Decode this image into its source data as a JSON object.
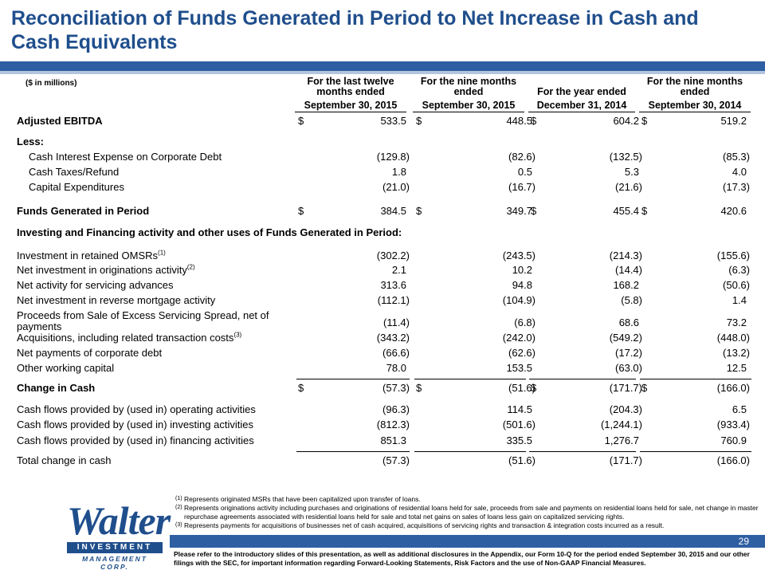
{
  "title": "Reconciliation of Funds Generated in Period to Net Increase in Cash and Cash Equivalents",
  "units": "($ in millions)",
  "columns": [
    {
      "heading": "For the last twelve months ended",
      "date": "September 30, 2015"
    },
    {
      "heading": "For the nine months ended",
      "date": "September 30, 2015"
    },
    {
      "heading": "For the year ended",
      "date": "December 31, 2014"
    },
    {
      "heading": "For the nine months ended",
      "date": "September 30, 2014"
    }
  ],
  "rows": {
    "adjusted_ebitda": {
      "label": "Adjusted EBITDA",
      "values": [
        "533.5",
        "448.5",
        "604.2",
        "519.2"
      ]
    },
    "less": {
      "label": "Less:"
    },
    "cash_interest": {
      "label": "Cash Interest Expense on Corporate Debt",
      "values": [
        "(129.8)",
        "(82.6)",
        "(132.5)",
        "(85.3)"
      ]
    },
    "cash_taxes": {
      "label": "Cash Taxes/Refund",
      "values": [
        "1.8",
        "0.5",
        "5.3",
        "4.0"
      ]
    },
    "capex": {
      "label": "Capital Expenditures",
      "values": [
        "(21.0)",
        "(16.7)",
        "(21.6)",
        "(17.3)"
      ]
    },
    "funds_generated": {
      "label": "Funds Generated in Period",
      "values": [
        "384.5",
        "349.7",
        "455.4",
        "420.6"
      ]
    },
    "investing_header": {
      "label": "Investing and Financing activity and other uses of Funds Generated in Period:"
    },
    "omsr": {
      "label": "Investment in retained OMSRs",
      "note": "(1)",
      "values": [
        "(302.2)",
        "(243.5)",
        "(214.3)",
        "(155.6)"
      ]
    },
    "originations": {
      "label": "Net investment in originations activity",
      "note": "(2)",
      "values": [
        "2.1",
        "10.2",
        "(14.4)",
        "(6.3)"
      ]
    },
    "servicing_adv": {
      "label": "Net activity for servicing advances",
      "values": [
        "313.6",
        "94.8",
        "168.2",
        "(50.6)"
      ]
    },
    "reverse_mortgage": {
      "label": "Net investment in reverse mortgage activity",
      "values": [
        "(112.1)",
        "(104.9)",
        "(5.8)",
        "1.4"
      ]
    },
    "excess_spread": {
      "label_line1": "Proceeds from Sale of Excess Servicing Spread, net of",
      "label_line2": "payments",
      "values": [
        "(11.4)",
        "(6.8)",
        "68.6",
        "73.2"
      ]
    },
    "acquisitions": {
      "label": "Acquisitions, including related transaction costs",
      "note": "(3)",
      "values": [
        "(343.2)",
        "(242.0)",
        "(549.2)",
        "(448.0)"
      ]
    },
    "corp_debt": {
      "label": "Net payments of corporate debt",
      "values": [
        "(66.6)",
        "(62.6)",
        "(17.2)",
        "(13.2)"
      ]
    },
    "working_capital": {
      "label": "Other working capital",
      "values": [
        "78.0",
        "153.5",
        "(63.0)",
        "12.5"
      ]
    },
    "change_in_cash": {
      "label": "Change in Cash",
      "values": [
        "(57.3)",
        "(51.6)",
        "(171.7)",
        "(166.0)"
      ]
    },
    "operating": {
      "label": "Cash flows provided by (used in) operating activities",
      "values": [
        "(96.3)",
        "114.5",
        "(204.3)",
        "6.5"
      ]
    },
    "investing": {
      "label": "Cash flows provided by (used in) investing activities",
      "values": [
        "(812.3)",
        "(501.6)",
        "(1,244.1)",
        "(933.4)"
      ]
    },
    "financing": {
      "label": "Cash flows provided by (used in) financing activities",
      "values": [
        "851.3",
        "335.5",
        "1,276.7",
        "760.9"
      ]
    },
    "total_change": {
      "label": "Total change in cash",
      "values": [
        "(57.3)",
        "(51.6)",
        "(171.7)",
        "(166.0)"
      ]
    }
  },
  "currency_symbol": "$",
  "footnotes": [
    {
      "mark": "(1)",
      "text": "Represents originated MSRs that have been capitalized upon transfer of loans."
    },
    {
      "mark": "(2)",
      "text": "Represents originations activity including purchases and originations of residential loans held for sale, proceeds from sale and payments on residential loans held for sale, net change in master repurchase agreements associated with residential loans held for sale and total net gains on sales of loans less gain on capitalized servicing rights."
    },
    {
      "mark": "(3)",
      "text": "Represents payments for acquisitions of businesses net of cash acquired, acquisitions of servicing rights and transaction & integration costs incurred as a result."
    }
  ],
  "logo": {
    "name": "Walter",
    "bar": "INVESTMENT",
    "sub": "MANAGEMENT CORP."
  },
  "page_number": "29",
  "disclaimer": "Please refer to the introductory slides of this presentation, as well as additional disclosures in the Appendix, our Form 10-Q for the period ended September 30, 2015 and our other filings with the SEC, for important information regarding Forward-Looking Statements, Risk Factors and the use of Non-GAAP Financial Measures.",
  "colors": {
    "title": "#1f4e8c",
    "band": "#2e5fa3",
    "band_light": "#b3c4de"
  }
}
